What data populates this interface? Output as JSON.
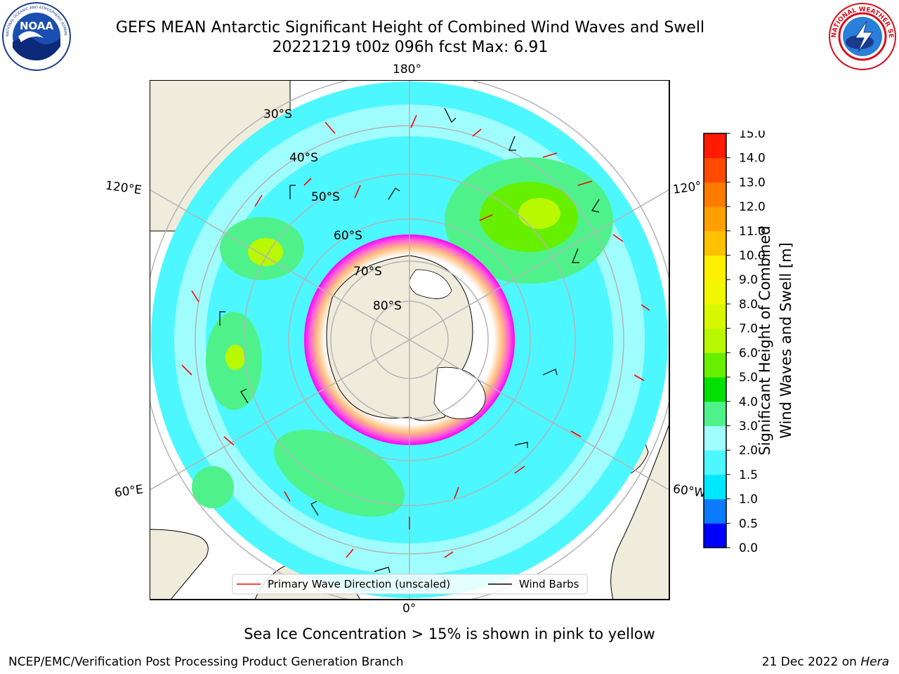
{
  "header": {
    "title_line1": "GEFS MEAN Antarctic Significant Height of Combined Wind Waves and Swell",
    "title_line2": "20221219 t00z 096h fcst   Max: 6.91",
    "left_logo_text": "NOAA",
    "left_logo_ring_text": "NATIONAL OCEANIC AND ATMOSPHERIC ADMINISTRATION · U.S. DEPARTMENT OF COMMERCE",
    "right_logo_ring_text": "NATIONAL WEATHER SERVICE"
  },
  "map": {
    "longitude_labels": {
      "top": "180°",
      "bottom": "0°",
      "left_upper": "120°E",
      "left_lower": "60°E",
      "right_upper": "120°",
      "right_lower": "60°W"
    },
    "latitude_labels": [
      "30°S",
      "40°S",
      "50°S",
      "60°S",
      "70°S",
      "80°S"
    ],
    "legend": {
      "wave_direction": "Primary Wave Direction (unscaled)",
      "wind_barbs": "Wind Barbs"
    },
    "colors": {
      "land": "#efecdc",
      "sea_ice": "#ffffff",
      "wave_arrow": "#ff0000",
      "barb": "#000000",
      "grid": "#b4b4b4"
    }
  },
  "colorbar": {
    "label_line1": "Significant Height of Combined",
    "label_line2": "Wind Waves and Swell [m]",
    "ticks": [
      "0.0",
      "0.5",
      "1.0",
      "1.5",
      "2.0",
      "3.0",
      "4.0",
      "5.0",
      "6.0",
      "7.0",
      "8.0",
      "9.0",
      "10.0",
      "11.0",
      "12.0",
      "13.0",
      "14.0",
      "15.0"
    ],
    "colors": [
      "#0000ff",
      "#0a7bff",
      "#00e8ff",
      "#4df7ff",
      "#a0fdfd",
      "#4ff28a",
      "#00e000",
      "#66f000",
      "#b8f800",
      "#d8f800",
      "#f2f800",
      "#fff000",
      "#ffc000",
      "#ffa000",
      "#ff7a00",
      "#ff4a00",
      "#ff1a00"
    ]
  },
  "caption": "Sea Ice Concentration > 15% is shown in pink to yellow",
  "footer": {
    "left": "NCEP/EMC/Verification Post Processing Product Generation Branch",
    "right_date": "21 Dec 2022 on ",
    "right_machine": "Hera"
  }
}
